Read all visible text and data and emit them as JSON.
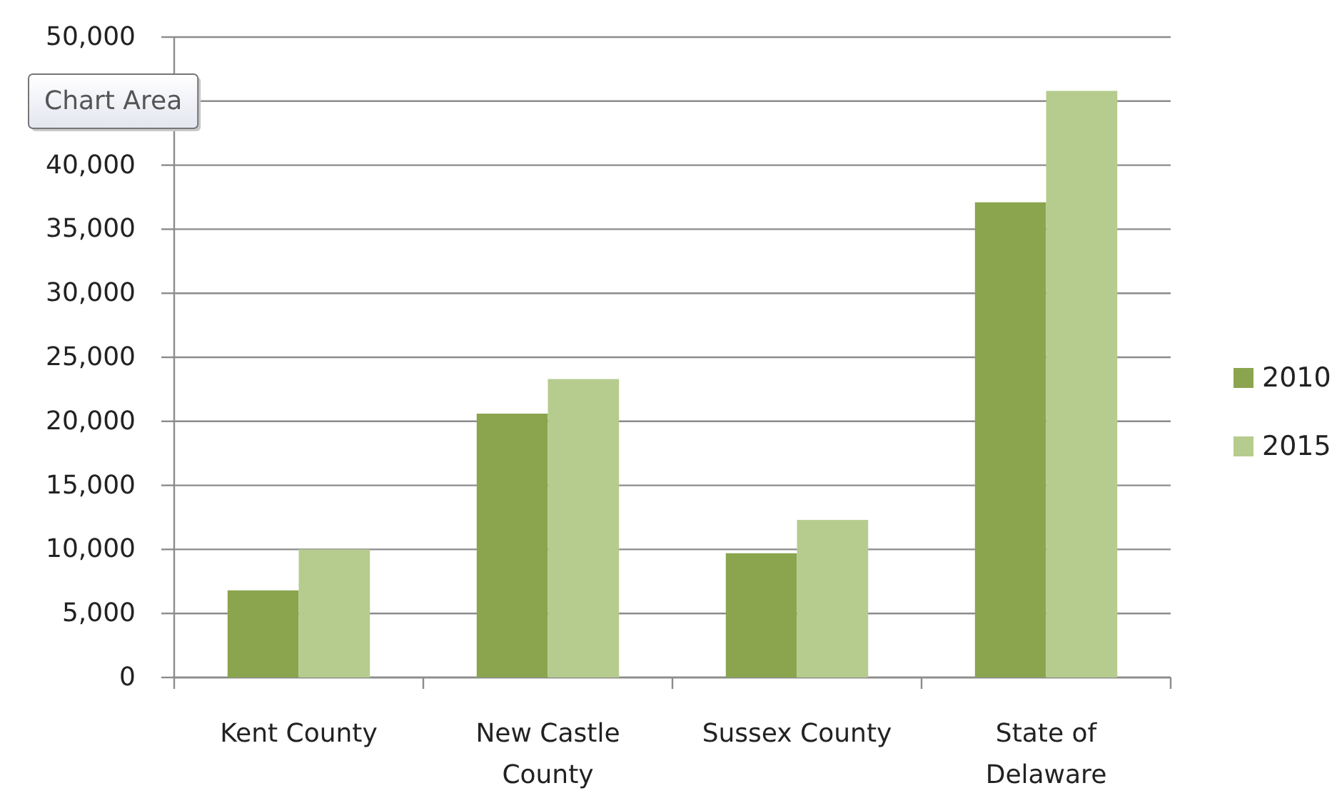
{
  "chart_data": {
    "type": "bar",
    "categories": [
      "Kent County",
      "New Castle County",
      "Sussex County",
      "State of Delaware"
    ],
    "series": [
      {
        "name": "2010",
        "color": "#8aa54e",
        "values": [
          6800,
          20600,
          9700,
          37100
        ]
      },
      {
        "name": "2015",
        "color": "#b6cc8e",
        "values": [
          10000,
          23300,
          12300,
          45800
        ]
      }
    ],
    "ylim": [
      0,
      50000
    ],
    "yticks": [
      0,
      {
        "value": 5000,
        "label": "5,000"
      },
      {
        "value": 10000,
        "label": "10,000"
      },
      {
        "value": 15000,
        "label": "15,000"
      },
      {
        "value": 20000,
        "label": "20,000"
      },
      {
        "value": 25000,
        "label": "25,000"
      },
      {
        "value": 30000,
        "label": "30,000"
      },
      {
        "value": 35000,
        "label": "35,000"
      },
      {
        "value": 40000,
        "label": "40,000"
      },
      {
        "value": 45000,
        "label": null
      },
      {
        "value": 50000,
        "label": "50,000"
      }
    ],
    "grid": "y",
    "legend": "right",
    "annotations": [
      "Chart Area"
    ]
  }
}
